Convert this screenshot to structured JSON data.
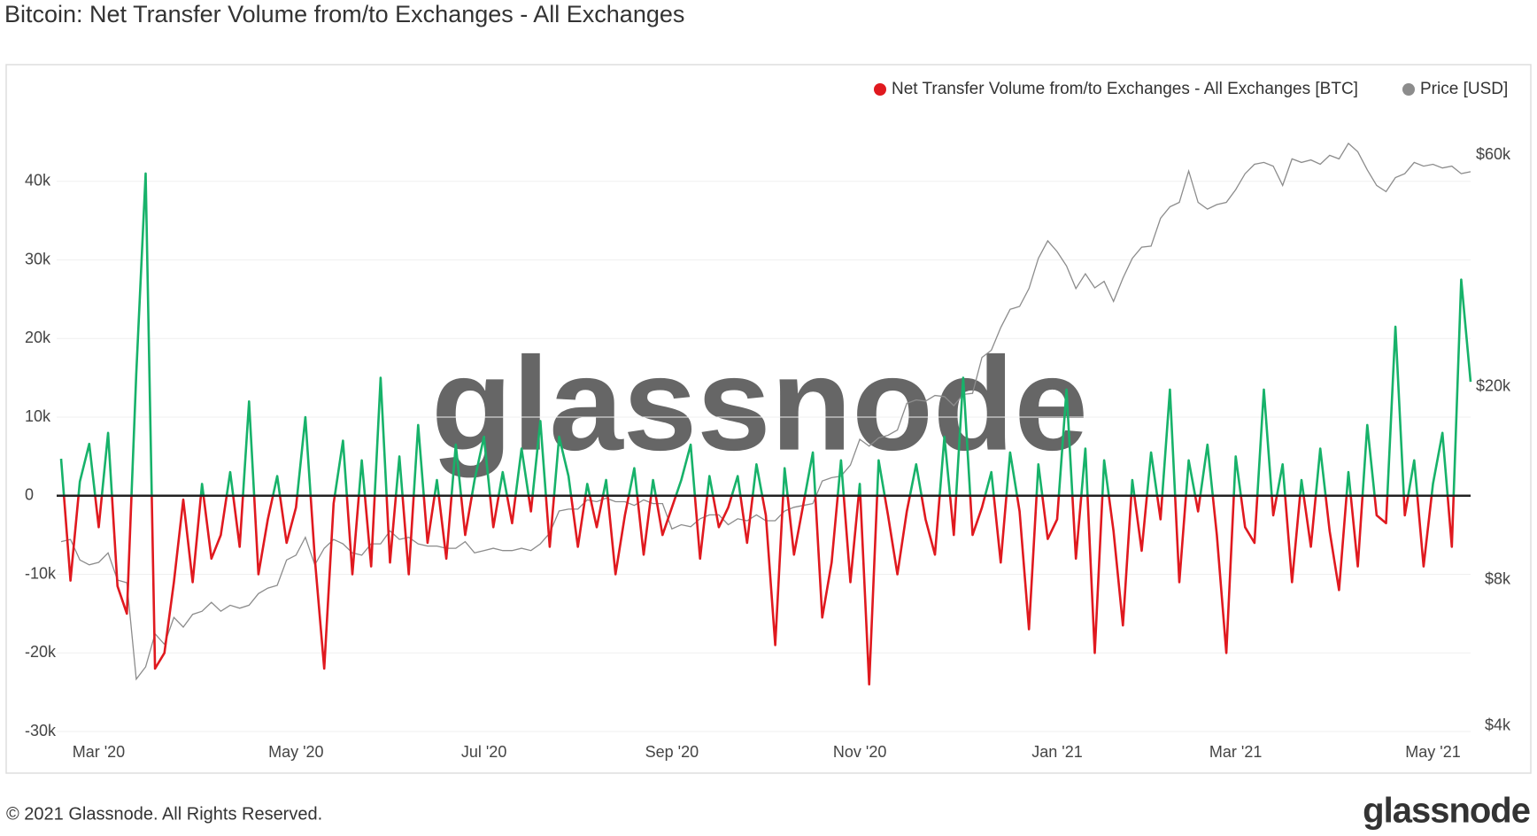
{
  "chart_data": {
    "type": "line",
    "title": "Bitcoin: Net Transfer Volume from/to Exchanges - All Exchanges",
    "watermark": "glassnode",
    "copyright": "© 2021 Glassnode. All Rights Reserved.",
    "logo": "glassnode",
    "legend_position": "top-right",
    "grid": true,
    "categories": [
      null,
      null,
      null,
      null,
      "Mar '20",
      null,
      null,
      null,
      null,
      null,
      null,
      null,
      null,
      null,
      null,
      null,
      null,
      null,
      null,
      null,
      null,
      null,
      null,
      null,
      null,
      "May '20",
      null,
      null,
      null,
      null,
      null,
      null,
      null,
      null,
      null,
      null,
      null,
      null,
      null,
      null,
      null,
      null,
      null,
      null,
      null,
      "Jul '20",
      null,
      null,
      null,
      null,
      null,
      null,
      null,
      null,
      null,
      null,
      null,
      null,
      null,
      null,
      null,
      null,
      null,
      null,
      null,
      "Sep '20",
      null,
      null,
      null,
      null,
      null,
      null,
      null,
      null,
      null,
      null,
      null,
      null,
      null,
      null,
      null,
      null,
      null,
      null,
      null,
      "Nov '20",
      null,
      null,
      null,
      null,
      null,
      null,
      null,
      null,
      null,
      null,
      null,
      null,
      null,
      null,
      null,
      null,
      null,
      null,
      null,
      null,
      "Jan '21",
      null,
      null,
      null,
      null,
      null,
      null,
      null,
      null,
      null,
      null,
      null,
      null,
      null,
      null,
      null,
      null,
      null,
      null,
      "Mar '21",
      null,
      null,
      null,
      null,
      null,
      null,
      null,
      null,
      null,
      null,
      null,
      null,
      null,
      null,
      null,
      null,
      null,
      null,
      null,
      null,
      "May '21",
      null,
      null,
      null,
      null
    ],
    "ylim": [
      -30000,
      50000
    ],
    "yticks": [
      {
        "value": -30000,
        "label": "-30k"
      },
      {
        "value": -20000,
        "label": "-20k"
      },
      {
        "value": -10000,
        "label": "-10k"
      },
      0,
      {
        "value": 10000,
        "label": "10k"
      },
      {
        "value": 20000,
        "label": "20k"
      },
      {
        "value": 30000,
        "label": "30k"
      },
      {
        "value": 40000,
        "label": "40k"
      }
    ],
    "y2lim": [
      3900,
      77000
    ],
    "y2_log_scale": true,
    "y2ticks": [
      {
        "value": 4000,
        "label": "$4k"
      },
      {
        "value": 8000,
        "label": "$8k"
      },
      {
        "value": 20000,
        "label": "$20k"
      },
      {
        "value": 60000,
        "label": "$60k"
      }
    ],
    "series": [
      {
        "name": "Net Transfer Volume from/to Exchanges - All Exchanges [BTC]",
        "color": "#e0191f",
        "positive_color": "#17b26a",
        "axis": "y",
        "values": [
          4700,
          -10800,
          1800,
          6600,
          -4000,
          8000,
          -11500,
          -15000,
          15500,
          41000,
          -22000,
          -20000,
          -11000,
          -500,
          -11000,
          1500,
          -8000,
          -5000,
          3000,
          -6500,
          12000,
          -10000,
          -3000,
          2500,
          -6000,
          -1500,
          10000,
          -8000,
          -22000,
          -1000,
          7000,
          -10000,
          4500,
          -9000,
          15000,
          -8500,
          5000,
          -10000,
          9000,
          -6000,
          2000,
          -8000,
          6500,
          -5000,
          2000,
          7500,
          -4000,
          3000,
          -3500,
          6000,
          -2000,
          9500,
          -6500,
          7500,
          2500,
          -6500,
          1500,
          -4000,
          2000,
          -10000,
          -2500,
          3500,
          -7500,
          2000,
          -5000,
          -1500,
          2000,
          6500,
          -8000,
          2500,
          -4000,
          -1500,
          2500,
          -6000,
          4000,
          -2500,
          -19000,
          3500,
          -7500,
          -1000,
          5500,
          -15500,
          -8500,
          4500,
          -11000,
          1500,
          -24000,
          4500,
          -2500,
          -10000,
          -2000,
          4000,
          -3000,
          -7500,
          7500,
          -5000,
          15000,
          -5000,
          -1500,
          3000,
          -8500,
          5500,
          -2000,
          -17000,
          4000,
          -5500,
          -3000,
          13500,
          -8000,
          6000,
          -20000,
          4500,
          -4500,
          -16500,
          2000,
          -7000,
          5500,
          -3000,
          13500,
          -11000,
          4500,
          -2000,
          6500,
          -5000,
          -20000,
          5000,
          -4000,
          -6000,
          13500,
          -2500,
          4000,
          -11000,
          2000,
          -6500,
          6000,
          -4500,
          -12000,
          3000,
          -9000,
          9000,
          -2500,
          -3500,
          21500,
          -2500,
          4500,
          -9000,
          1500,
          8000,
          -6500,
          27500,
          14500
        ]
      },
      {
        "name": "Price [USD]",
        "color": "#8c8c8c",
        "axis": "y2",
        "values": [
          9600,
          9700,
          8800,
          8600,
          8700,
          9100,
          8000,
          7900,
          5000,
          5300,
          6200,
          5900,
          6700,
          6400,
          6800,
          6900,
          7200,
          6900,
          7100,
          7000,
          7100,
          7500,
          7700,
          7800,
          8800,
          9000,
          9800,
          8600,
          9300,
          9700,
          9500,
          9100,
          9000,
          9500,
          9500,
          10100,
          9700,
          9800,
          9500,
          9400,
          9400,
          9300,
          9300,
          9600,
          9100,
          9200,
          9300,
          9200,
          9200,
          9300,
          9200,
          9500,
          10000,
          11100,
          11200,
          11200,
          11700,
          11600,
          11800,
          11600,
          11600,
          11400,
          11700,
          11500,
          11500,
          10200,
          10400,
          10300,
          10700,
          10900,
          10900,
          10400,
          10700,
          10600,
          10900,
          10600,
          10600,
          11100,
          11300,
          11400,
          11500,
          12800,
          13000,
          13100,
          13800,
          15600,
          15100,
          15700,
          15900,
          16300,
          18500,
          18800,
          18700,
          19200,
          19100,
          18300,
          19300,
          19400,
          23000,
          23800,
          26500,
          28900,
          29300,
          31900,
          36800,
          40000,
          38000,
          35500,
          31900,
          34200,
          32000,
          33000,
          30000,
          33500,
          36800,
          38800,
          39000,
          44500,
          47000,
          48000,
          55700,
          48000,
          46500,
          47500,
          48000,
          51000,
          55000,
          57500,
          58000,
          57000,
          52000,
          59000,
          58000,
          58700,
          57500,
          60000,
          59000,
          63500,
          61000,
          56000,
          52000,
          50500,
          54000,
          55000,
          58000,
          57000,
          57500,
          56500,
          57000,
          55000,
          55500
        ]
      }
    ]
  }
}
